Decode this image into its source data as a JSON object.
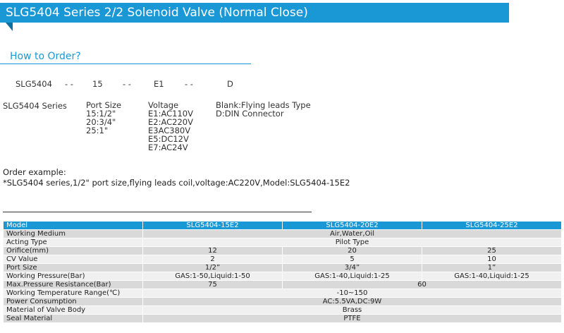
{
  "banner": {
    "title": "SLG5404 Series 2/2 Solenoid Valve (Normal Close)"
  },
  "order": {
    "title": "How to Order?",
    "code": {
      "model": "SLG5404",
      "sep1": "- -",
      "port": "15",
      "sep2": "- -",
      "voltage": "E1",
      "sep3": "- -",
      "connector": "D"
    },
    "series_label": "SLG5404 Series",
    "port_size": [
      "Port Size",
      "15:1/2\"",
      "20:3/4\"",
      "25:1\""
    ],
    "voltage": [
      "Voltage",
      "E1:AC110V",
      "E2:AC220V",
      "E3AC380V",
      "E5:DC12V",
      "E7:AC24V"
    ],
    "connector": [
      "Blank:Flying leads Type",
      "D:DIN Connector"
    ]
  },
  "example": {
    "title": "Order example:",
    "text": "*SLG5404 series,1/2\" port size,flying leads coil,voltage:AC220V,Model:SLG5404-15E2"
  },
  "table": {
    "header": [
      "Model",
      "SLG5404-15E2",
      "SLG5404-20E2",
      "SLG5404-25E2"
    ],
    "rows": [
      {
        "label": "Working Medium",
        "cells": [
          {
            "text": "Air,Water,Oil",
            "span": 3
          }
        ]
      },
      {
        "label": "Acting Type",
        "cells": [
          {
            "text": "Pilot Type",
            "span": 3
          }
        ]
      },
      {
        "label": "Orifice(mm)",
        "cells": [
          {
            "text": "12",
            "span": 1
          },
          {
            "text": "20",
            "span": 1
          },
          {
            "text": "25",
            "span": 1
          }
        ]
      },
      {
        "label": "CV Value",
        "cells": [
          {
            "text": "2",
            "span": 1
          },
          {
            "text": "5",
            "span": 1
          },
          {
            "text": "10",
            "span": 1
          }
        ]
      },
      {
        "label": "Port Size",
        "cells": [
          {
            "text": "1/2”",
            "span": 1
          },
          {
            "text": "3/4”",
            "span": 1
          },
          {
            "text": "1”",
            "span": 1
          }
        ]
      },
      {
        "label": "Working Pressure(Bar)",
        "cells": [
          {
            "text": "GAS:1-50,Liquid:1-50",
            "span": 1
          },
          {
            "text": "GAS:1-40,Liquid:1-25",
            "span": 1
          },
          {
            "text": "GAS:1-40,Liquid:1-25",
            "span": 1
          }
        ]
      },
      {
        "label": "Max.Pressure Resistance(Bar)",
        "cells": [
          {
            "text": "75",
            "span": 1
          },
          {
            "text": "60",
            "span": 2
          }
        ]
      },
      {
        "label": "Working Temperature Range(℃)",
        "cells": [
          {
            "text": "-10~150",
            "span": 3
          }
        ]
      },
      {
        "label": "Power Consumption",
        "cells": [
          {
            "text": "AC:5.5VA,DC:9W",
            "span": 3
          }
        ]
      },
      {
        "label": "Material of Valve Body",
        "cells": [
          {
            "text": "Brass",
            "span": 3
          }
        ]
      },
      {
        "label": "Seal Material",
        "cells": [
          {
            "text": "PTFE",
            "span": 3
          }
        ]
      }
    ]
  }
}
